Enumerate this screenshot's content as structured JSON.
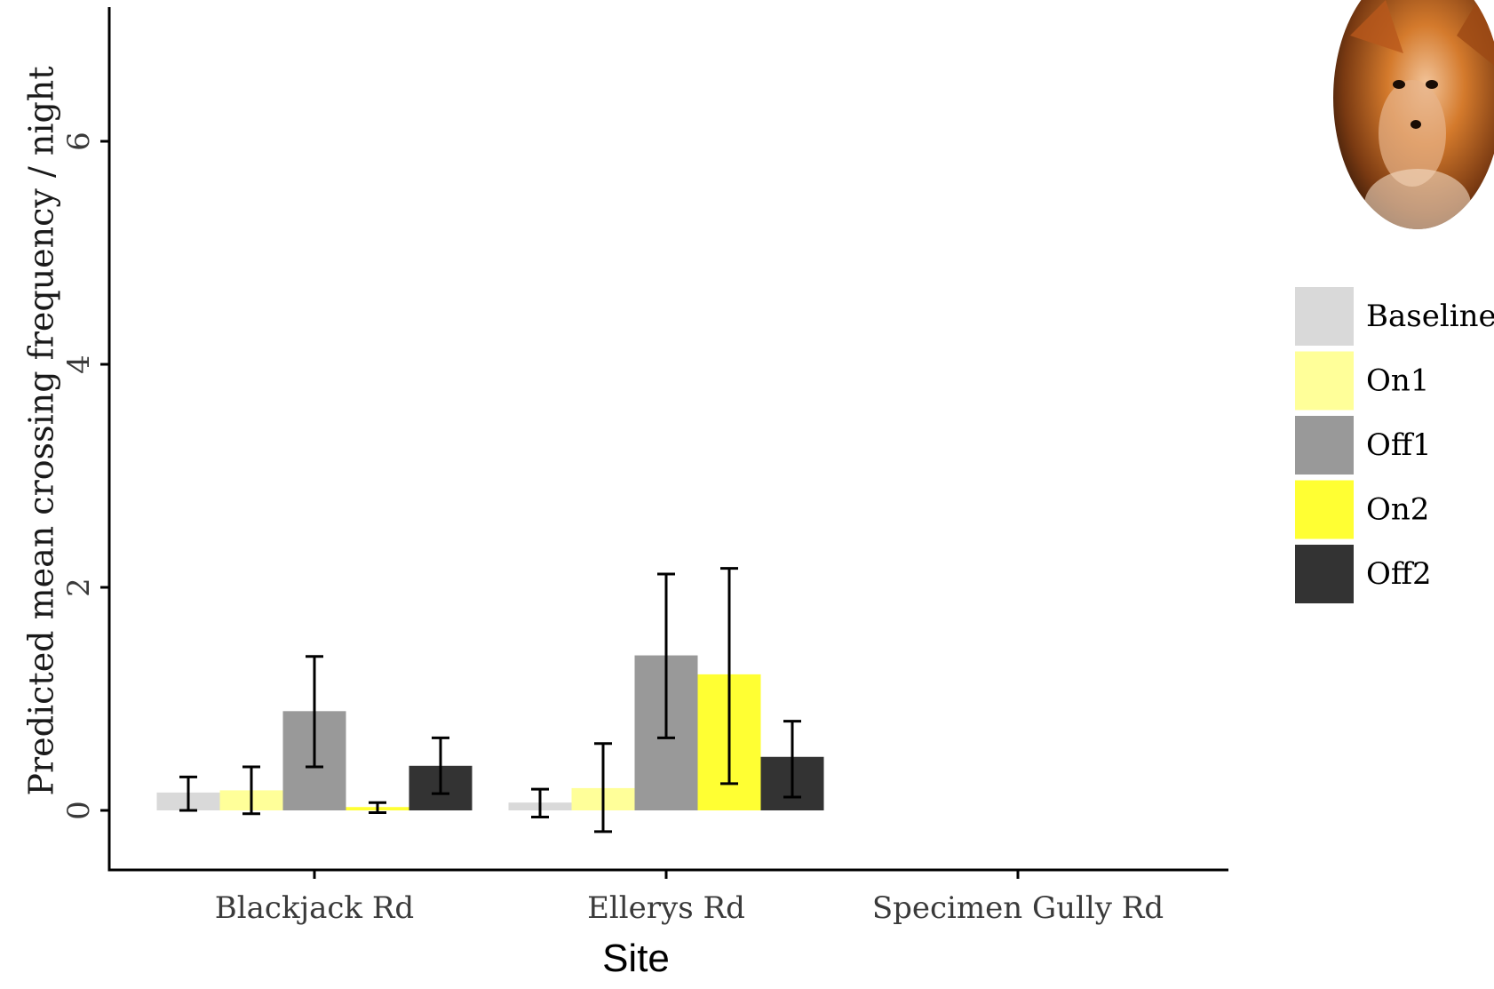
{
  "chart_data": {
    "type": "bar",
    "xlabel": "Site",
    "ylabel": "Predicted mean crossing frequency / night",
    "categories": [
      "Blackjack Rd",
      "Ellerys Rd",
      "Specimen Gully Rd"
    ],
    "ylim": [
      -0.55,
      7.2
    ],
    "yticks": [
      0,
      2,
      4,
      6
    ],
    "grid": false,
    "legend_position": "right",
    "series": [
      {
        "name": "Baseline",
        "color": "#d9d9d9",
        "values": [
          0.16,
          0.07,
          null
        ],
        "err_low": [
          0.0,
          -0.06,
          null
        ],
        "err_high": [
          0.3,
          0.19,
          null
        ]
      },
      {
        "name": "On1",
        "color": "#ffff99",
        "values": [
          0.18,
          0.2,
          null
        ],
        "err_low": [
          -0.03,
          -0.19,
          null
        ],
        "err_high": [
          0.39,
          0.6,
          null
        ]
      },
      {
        "name": "Off1",
        "color": "#999999",
        "values": [
          0.89,
          1.39,
          null
        ],
        "err_low": [
          0.39,
          0.65,
          null
        ],
        "err_high": [
          1.38,
          2.12,
          null
        ]
      },
      {
        "name": "On2",
        "color": "#ffff33",
        "values": [
          0.03,
          1.22,
          null
        ],
        "err_low": [
          -0.02,
          0.24,
          null
        ],
        "err_high": [
          0.07,
          2.17,
          null
        ]
      },
      {
        "name": "Off2",
        "color": "#333333",
        "values": [
          0.4,
          0.48,
          null
        ],
        "err_low": [
          0.15,
          0.12,
          null
        ],
        "err_high": [
          0.65,
          0.8,
          null
        ]
      }
    ]
  },
  "decoration": {
    "image": "fox-photo"
  }
}
